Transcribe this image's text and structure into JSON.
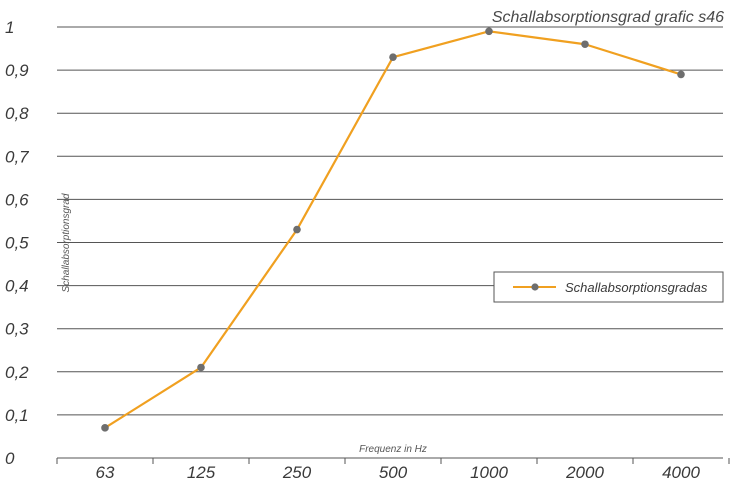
{
  "chart_data": {
    "type": "line",
    "title": "Schallabsorptionsgrad grafic s46",
    "xlabel": "Frequenz in Hz",
    "ylabel": "Schallabsorptionsgrad",
    "categories": [
      "63",
      "125",
      "250",
      "500",
      "1000",
      "2000",
      "4000"
    ],
    "series": [
      {
        "name": "Schallabsorptionsgradas",
        "x": [
          "63",
          "125",
          "250",
          "500",
          "1000",
          "2000",
          "4000"
        ],
        "values": [
          0.07,
          0.21,
          0.53,
          0.93,
          0.99,
          0.96,
          0.89
        ]
      }
    ],
    "ylim": [
      0,
      1
    ],
    "yticks": [
      "0",
      "0,1",
      "0,2",
      "0,3",
      "0,4",
      "0,5",
      "0,6",
      "0,7",
      "0,8",
      "0,9",
      "1"
    ],
    "grid": true,
    "legend": "right",
    "colors": {
      "line": "#f0a020",
      "marker": "#6e6e6e",
      "grid": "#555555",
      "axis": "#555555"
    }
  }
}
